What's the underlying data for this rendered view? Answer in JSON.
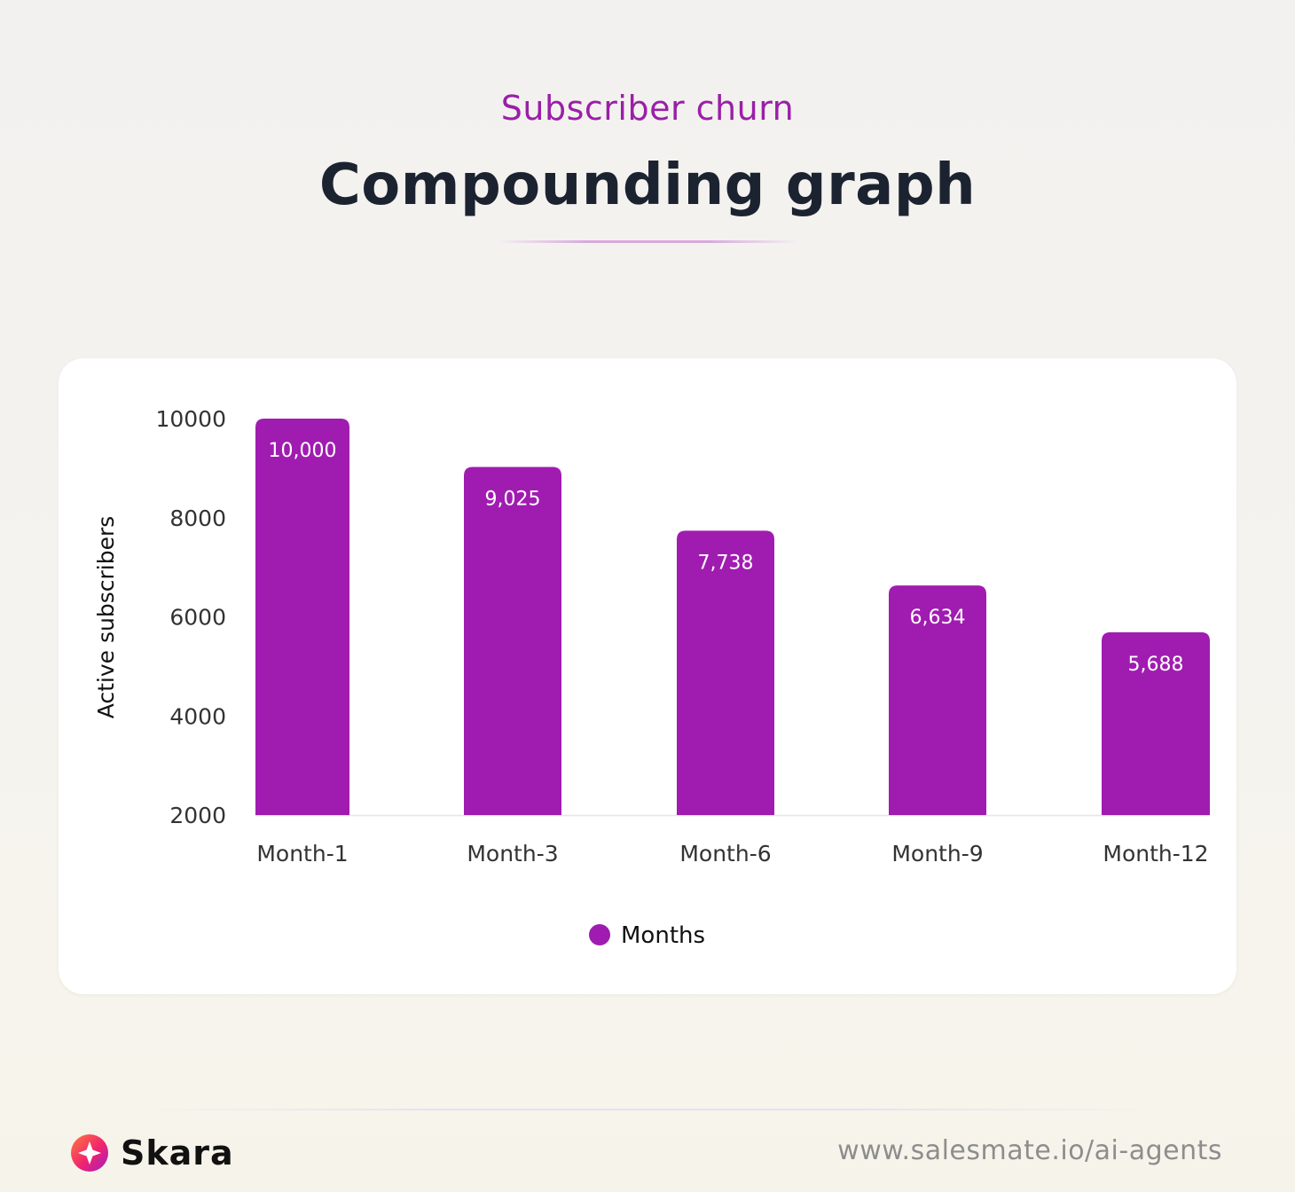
{
  "header": {
    "eyebrow": "Subscriber churn",
    "title": "Compounding graph"
  },
  "chart_data": {
    "type": "bar",
    "categories": [
      "Month-1",
      "Month-3",
      "Month-6",
      "Month-9",
      "Month-12"
    ],
    "series": [
      {
        "name": "Months",
        "values": [
          10000,
          9025,
          7738,
          6634,
          5688
        ],
        "labels": [
          "10,000",
          "9,025",
          "7,738",
          "6,634",
          "5,688"
        ],
        "color": "#a01cb0"
      }
    ],
    "ylabel": "Active subscribers",
    "xlabel": "",
    "yticks": [
      2000,
      4000,
      6000,
      8000,
      10000
    ],
    "ylim": [
      2000,
      10000
    ],
    "grid": false,
    "legend_position": "bottom-center"
  },
  "footer": {
    "brand_name": "Skara",
    "url": "www.salesmate.io/ai-agents"
  },
  "colors": {
    "accent": "#a01cb0",
    "title": "#1c2330",
    "eyebrow": "#9a1fa8",
    "muted": "#8d8d8d"
  }
}
